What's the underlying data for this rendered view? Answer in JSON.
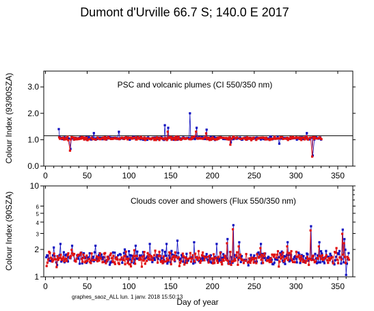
{
  "title": "Dumont d'Urville  66.7 S; 140.0 E   2017",
  "footer": "graphes_saoz_ALL  lun. 1 janv. 2018 15:50:13",
  "xlabel": "Day of year",
  "colors": {
    "series_blue": "#1010c0",
    "series_red": "#e01010",
    "reference": "#000000"
  },
  "chart_data": [
    {
      "type": "scatter",
      "annotation": "PSC and volcanic plumes (CI 550/350 nm)",
      "ylabel": "Colour Index (93/90SZA)",
      "xlim": [
        -2,
        368
      ],
      "ylim": [
        0,
        3.6
      ],
      "yscale": "linear",
      "xticks": [
        0,
        50,
        100,
        150,
        200,
        250,
        300,
        350
      ],
      "yticks": [
        0.0,
        1.0,
        2.0,
        3.0
      ],
      "ytick_labels": [
        "0.0",
        "1.0",
        "2.0",
        "3.0"
      ],
      "reference_line": 1.15,
      "x_range": [
        16,
        330
      ],
      "baseline": 1.05,
      "noise": 0.06,
      "spikes": [
        {
          "x": 16,
          "y": 1.4
        },
        {
          "x": 30,
          "y": 0.65
        },
        {
          "x": 58,
          "y": 1.25
        },
        {
          "x": 88,
          "y": 1.3
        },
        {
          "x": 120,
          "y": 0.85
        },
        {
          "x": 143,
          "y": 1.55
        },
        {
          "x": 147,
          "y": 1.45
        },
        {
          "x": 173,
          "y": 2.0
        },
        {
          "x": 181,
          "y": 1.45
        },
        {
          "x": 193,
          "y": 1.38
        },
        {
          "x": 222,
          "y": 0.9
        },
        {
          "x": 237,
          "y": 0.75
        },
        {
          "x": 280,
          "y": 0.85
        },
        {
          "x": 313,
          "y": 1.25
        },
        {
          "x": 320,
          "y": 0.4
        }
      ],
      "series": [
        {
          "name": "",
          "color": "#1010c0"
        },
        {
          "name": "",
          "color": "#e01010"
        }
      ]
    },
    {
      "type": "scatter",
      "annotation": "Clouds cover and showers (Flux 550/350 nm)",
      "ylabel": "Colour Index (90SZA)",
      "xlim": [
        -2,
        368
      ],
      "ylim": [
        1,
        10
      ],
      "yscale": "log",
      "xticks": [
        0,
        50,
        100,
        150,
        200,
        250,
        300,
        350
      ],
      "yticks": [
        1,
        2,
        3,
        4,
        5,
        6,
        10
      ],
      "ytick_labels": [
        "1",
        "2",
        "3",
        "4",
        "5",
        "6",
        "10"
      ],
      "x_range": [
        1,
        363
      ],
      "baseline": 1.6,
      "noise": 0.25,
      "spikes": [
        {
          "x": 10,
          "y": 2.1
        },
        {
          "x": 18,
          "y": 2.3
        },
        {
          "x": 32,
          "y": 2.2
        },
        {
          "x": 60,
          "y": 2.2
        },
        {
          "x": 95,
          "y": 2.0
        },
        {
          "x": 108,
          "y": 2.2
        },
        {
          "x": 125,
          "y": 2.3
        },
        {
          "x": 145,
          "y": 2.3
        },
        {
          "x": 158,
          "y": 2.5
        },
        {
          "x": 178,
          "y": 2.4
        },
        {
          "x": 205,
          "y": 2.3
        },
        {
          "x": 218,
          "y": 2.6
        },
        {
          "x": 225,
          "y": 3.7
        },
        {
          "x": 232,
          "y": 2.4
        },
        {
          "x": 258,
          "y": 2.3
        },
        {
          "x": 290,
          "y": 2.4
        },
        {
          "x": 318,
          "y": 3.6
        },
        {
          "x": 328,
          "y": 2.4
        },
        {
          "x": 349,
          "y": 2.3
        },
        {
          "x": 356,
          "y": 3.3
        },
        {
          "x": 358,
          "y": 2.6
        },
        {
          "x": 360,
          "y": 1.05
        }
      ],
      "series": [
        {
          "name": "",
          "color": "#1010c0"
        },
        {
          "name": "",
          "color": "#e01010"
        }
      ]
    }
  ]
}
